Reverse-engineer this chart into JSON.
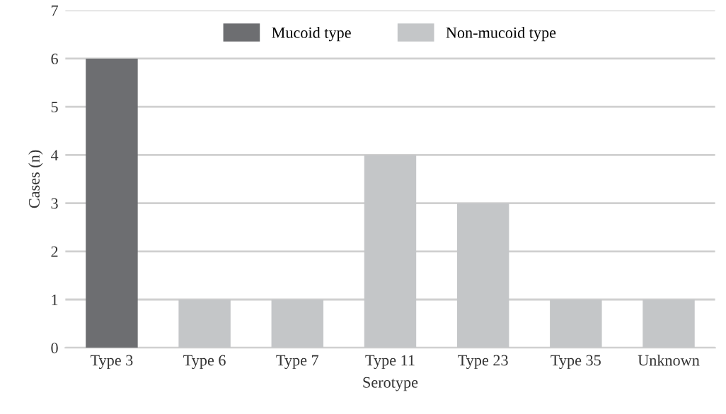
{
  "chart_data": {
    "type": "bar",
    "xlabel": "Serotype",
    "ylabel": "Cases (n)",
    "categories": [
      "Type 3",
      "Type 6",
      "Type 7",
      "Type 11",
      "Type 23",
      "Type 35",
      "Unknown"
    ],
    "series": [
      {
        "name": "Mucoid type",
        "color": "#6d6e71",
        "values": [
          6,
          null,
          null,
          null,
          null,
          null,
          null
        ]
      },
      {
        "name": "Non-mucoid type",
        "color": "#c4c6c8",
        "values": [
          null,
          1,
          1,
          4,
          3,
          1,
          1
        ]
      }
    ],
    "ylim": [
      0,
      7
    ],
    "yticks": [
      0,
      1,
      2,
      3,
      4,
      5,
      6,
      7
    ],
    "grid": "y",
    "legend": "top"
  }
}
